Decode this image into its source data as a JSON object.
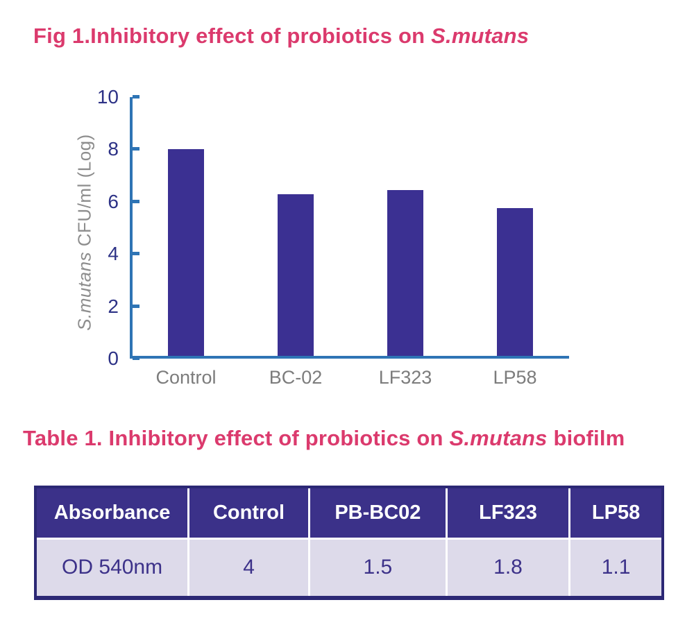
{
  "titles": {
    "fig": {
      "prefix": "Fig 1.Inhibitory effect of probiotics on ",
      "italic": "S.mutans",
      "suffix": ""
    },
    "table": {
      "prefix": "Table 1. Inhibitory effect of probiotics on ",
      "italic": "S.mutans",
      "suffix": " biofilm"
    }
  },
  "axis": {
    "ylabel_italic": "S.mutans",
    "ylabel_rest": " CFU/ml (Log)"
  },
  "chart_data": [
    {
      "type": "bar",
      "title": "Fig 1.Inhibitory effect of probiotics on S.mutans",
      "categories": [
        "Control",
        "BC-02",
        "LF323",
        "LP58"
      ],
      "values": [
        8.0,
        6.3,
        6.45,
        5.75
      ],
      "xlabel": "",
      "ylabel": "S.mutans CFU/ml (Log)",
      "ylim": [
        0,
        10
      ],
      "yticks": [
        0,
        2,
        4,
        6,
        8,
        10
      ],
      "grid": false,
      "legend": false
    },
    {
      "type": "table",
      "title": "Table 1. Inhibitory effect of probiotics on S.mutans biofilm",
      "headers": [
        "Absorbance",
        "Control",
        "PB-BC02",
        "LF323",
        "LP58"
      ],
      "rows": [
        [
          "OD 540nm",
          "4",
          "1.5",
          "1.8",
          "1.1"
        ]
      ]
    }
  ],
  "colors": {
    "title_pink": "#db3a6d",
    "bar_indigo": "#3b3092",
    "axis_blue": "#2e74b5",
    "tick_navy": "#2d3286",
    "xlabel_gray": "#7c7c7c",
    "ylabel_gray": "#8d8d8d",
    "header_bg": "#3b3189",
    "header_text": "#ffffff",
    "body_bg": "#dddaea",
    "body_text": "#3c3189",
    "table_border": "#2c2875",
    "page_bg": "#ffffff"
  }
}
